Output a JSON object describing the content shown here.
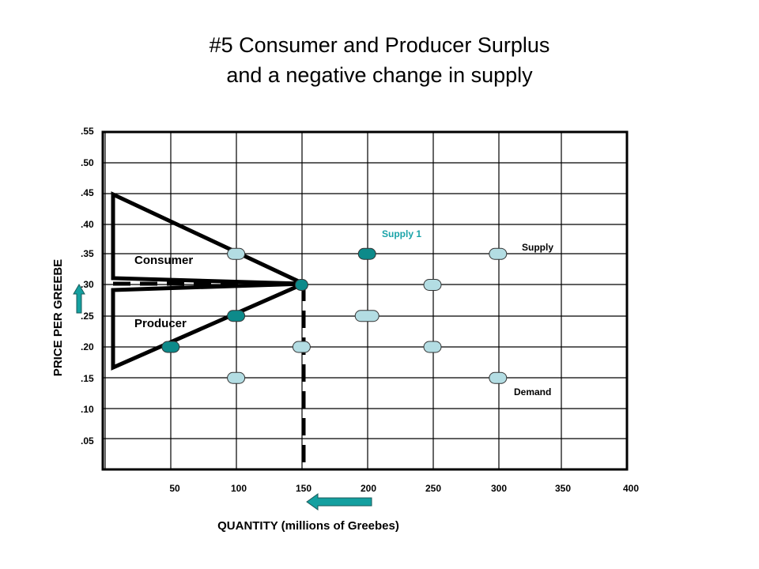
{
  "title": {
    "line1": "#5 Consumer and Producer Surplus",
    "line2": "and a negative change in supply"
  },
  "chart_data": {
    "type": "scatter",
    "xlabel": "QUANTITY (millions of Greebes)",
    "ylabel": "PRICE PER GREEBE",
    "x_ticks": [
      "50",
      "100",
      "150",
      "200",
      "250",
      "300",
      "350",
      "400"
    ],
    "y_ticks": [
      ".55",
      ".50",
      ".45",
      ".40",
      ".35",
      ".30",
      ".25",
      ".20",
      ".15",
      ".10",
      ".05"
    ],
    "xlim": [
      0,
      400
    ],
    "ylim": [
      0,
      0.55
    ],
    "grid": true,
    "colors": {
      "light_point": "#b3dde3",
      "dark_point": "#0d8a8a",
      "supply1_label": "#1aa3a8",
      "arrow": "#14a0a0"
    },
    "series": [
      {
        "name": "Supply 1",
        "points": [
          [
            50,
            0.2
          ],
          [
            100,
            0.25
          ],
          [
            150,
            0.3
          ],
          [
            200,
            0.35
          ]
        ]
      },
      {
        "name": "Supply",
        "points": [
          [
            150,
            0.2
          ],
          [
            200,
            0.25
          ],
          [
            250,
            0.3
          ],
          [
            300,
            0.35
          ]
        ]
      },
      {
        "name": "Demand",
        "points": [
          [
            100,
            0.35
          ],
          [
            150,
            0.3
          ],
          [
            250,
            0.2
          ],
          [
            300,
            0.15
          ],
          [
            100,
            0.15
          ]
        ]
      }
    ],
    "equilibrium": {
      "x": 150,
      "y": 0.3
    },
    "annotations": {
      "consumer": "Consumer",
      "producer": "Producer",
      "consumer_triangle": [
        [
          0,
          0.45
        ],
        [
          150,
          0.3
        ],
        [
          0,
          0.31
        ]
      ],
      "producer_triangle": [
        [
          0,
          0.29
        ],
        [
          150,
          0.3
        ],
        [
          0,
          0.17
        ]
      ]
    }
  }
}
